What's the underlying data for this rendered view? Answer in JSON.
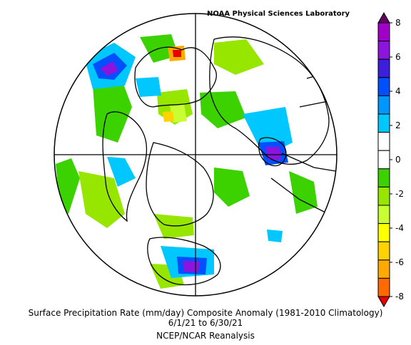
{
  "map": {
    "credit": "NOAA Physical Sciences Laboratory",
    "caption_line1": "Surface Precipitation Rate (mm/day) Composite Anomaly (1981-2010 Climatology)",
    "caption_line2": "6/1/21  to 6/30/21",
    "caption_line3": "NCEP/NCAR Reanalysis"
  },
  "colorbar": {
    "bins": [
      {
        "color": "#e60000"
      },
      {
        "color": "#ff6a00"
      },
      {
        "color": "#ffaa00"
      },
      {
        "color": "#ffd200"
      },
      {
        "color": "#ffff00"
      },
      {
        "color": "#c8ff32"
      },
      {
        "color": "#96e600"
      },
      {
        "color": "#3cd200"
      },
      {
        "color": "#ffffff"
      },
      {
        "color": "#ffffff"
      },
      {
        "color": "#00c8ff"
      },
      {
        "color": "#0096ff"
      },
      {
        "color": "#0050ff"
      },
      {
        "color": "#3c1edc"
      },
      {
        "color": "#8c14dc"
      },
      {
        "color": "#a000c8"
      },
      {
        "color": "#640064"
      }
    ],
    "labels": [
      "8",
      "6",
      "4",
      "2",
      "0",
      "-2",
      "-4",
      "-6",
      "-8"
    ]
  }
}
